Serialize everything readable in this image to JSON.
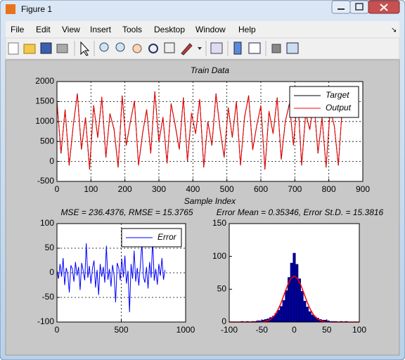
{
  "window": {
    "title": "Figure 1",
    "menu": [
      "File",
      "Edit",
      "View",
      "Insert",
      "Tools",
      "Desktop",
      "Window",
      "Help"
    ]
  },
  "chart_data": [
    {
      "type": "line",
      "title": "Train Data",
      "xlabel": "Sample Index",
      "x": [
        0,
        12,
        24,
        36,
        48,
        60,
        72,
        84,
        96,
        108,
        120,
        132,
        144,
        156,
        168,
        180,
        192,
        204,
        216,
        228,
        240,
        252,
        264,
        276,
        288,
        300,
        312,
        324,
        336,
        348,
        360,
        372,
        384,
        396,
        408,
        420,
        432,
        444,
        456,
        468,
        480,
        492,
        504,
        516,
        528,
        540,
        552,
        564,
        576,
        588,
        600,
        612,
        624,
        636,
        648,
        660,
        672,
        684,
        696,
        708,
        720,
        732,
        744,
        756,
        768,
        780,
        792,
        804,
        816,
        828,
        840
      ],
      "series": [
        {
          "name": "Target",
          "color": "#000000",
          "values": [
            1500,
            200,
            1300,
            -100,
            900,
            1700,
            300,
            1100,
            -200,
            1400,
            600,
            1600,
            100,
            1200,
            800,
            -150,
            1650,
            400,
            1000,
            1500,
            -100,
            700,
            1300,
            200,
            1750,
            500,
            1100,
            -50,
            1450,
            900,
            300,
            1600,
            0,
            1200,
            700,
            1550,
            -150,
            1000,
            400,
            1700,
            800,
            100,
            1350,
            600,
            1500,
            -100,
            1100,
            1650,
            300,
            900,
            1400,
            -200,
            1250,
            700,
            1600,
            50,
            1000,
            1450,
            400,
            1700,
            -100,
            1200,
            800,
            1550,
            200,
            1100,
            -150,
            1300,
            900,
            -100,
            1400
          ]
        },
        {
          "name": "Output",
          "color": "#ff0000",
          "values": [
            1480,
            220,
            1290,
            -80,
            915,
            1680,
            320,
            1085,
            -180,
            1410,
            590,
            1620,
            115,
            1190,
            820,
            -130,
            1630,
            410,
            985,
            1520,
            -85,
            715,
            1285,
            210,
            1730,
            490,
            1115,
            -40,
            1435,
            920,
            310,
            1580,
            15,
            1215,
            690,
            1565,
            -135,
            990,
            420,
            1680,
            815,
            110,
            1335,
            615,
            1490,
            -90,
            1120,
            1630,
            285,
            910,
            1390,
            -180,
            1265,
            690,
            1585,
            70,
            1010,
            1430,
            415,
            1690,
            -80,
            1215,
            790,
            1535,
            215,
            1090,
            -130,
            1315,
            885,
            -90,
            1410
          ]
        }
      ],
      "xlim": [
        0,
        900
      ],
      "xticks": [
        0,
        100,
        200,
        300,
        400,
        500,
        600,
        700,
        800,
        900
      ],
      "ylim": [
        -500,
        2000
      ],
      "yticks": [
        -500,
        0,
        500,
        1000,
        1500,
        2000
      ],
      "grid": true,
      "legend": "upper right"
    },
    {
      "type": "line",
      "title": "MSE = 236.4376, RMSE = 15.3765",
      "x": [
        0,
        12,
        24,
        36,
        48,
        60,
        72,
        84,
        96,
        108,
        120,
        132,
        144,
        156,
        168,
        180,
        192,
        204,
        216,
        228,
        240,
        252,
        264,
        276,
        288,
        300,
        312,
        324,
        336,
        348,
        360,
        372,
        384,
        396,
        408,
        420,
        432,
        444,
        456,
        468,
        480,
        492,
        504,
        516,
        528,
        540,
        552,
        564,
        576,
        588,
        600,
        612,
        624,
        636,
        648,
        660,
        672,
        684,
        696,
        708,
        720,
        732,
        744,
        756,
        768,
        780,
        792,
        804,
        816,
        828,
        840
      ],
      "series": [
        {
          "name": "Error",
          "color": "#0000ff",
          "values": [
            5,
            -12,
            18,
            -8,
            30,
            -25,
            10,
            -3,
            -40,
            15,
            8,
            -18,
            22,
            -6,
            12,
            -35,
            20,
            4,
            -15,
            60,
            -10,
            14,
            -22,
            9,
            25,
            -30,
            6,
            -45,
            18,
            -8,
            12,
            -20,
            55,
            -14,
            8,
            -28,
            16,
            -5,
            -60,
            20,
            10,
            -15,
            28,
            -9,
            35,
            -22,
            4,
            -80,
            18,
            -12,
            45,
            -18,
            10,
            -26,
            14,
            62,
            -8,
            -20,
            12,
            -32,
            22,
            -10,
            70,
            -16,
            8,
            -24,
            18,
            -6,
            30,
            -14,
            6
          ]
        }
      ],
      "xlim": [
        0,
        1000
      ],
      "xticks": [
        0,
        500,
        1000
      ],
      "ylim": [
        -100,
        100
      ],
      "yticks": [
        -100,
        -50,
        0,
        50,
        100
      ],
      "grid": true,
      "legend": "upper right"
    },
    {
      "type": "histogram",
      "title": "Error Mean = 0.35346, Error St.D. = 15.3816",
      "bins": [
        -82,
        -78,
        -74,
        -70,
        -66,
        -62,
        -58,
        -54,
        -50,
        -46,
        -42,
        -38,
        -34,
        -30,
        -26,
        -22,
        -18,
        -14,
        -10,
        -6,
        -2,
        2,
        6,
        10,
        14,
        18,
        22,
        26,
        30,
        34,
        38,
        42,
        46,
        50,
        54,
        58,
        62,
        66,
        70,
        74,
        78,
        82
      ],
      "counts": [
        1,
        0,
        1,
        0,
        1,
        1,
        2,
        2,
        3,
        4,
        5,
        7,
        9,
        13,
        18,
        24,
        33,
        48,
        68,
        90,
        105,
        88,
        66,
        47,
        32,
        23,
        16,
        11,
        8,
        6,
        4,
        3,
        3,
        2,
        1,
        1,
        1,
        0,
        1,
        0,
        1
      ],
      "color": "#000080",
      "fit": {
        "color": "#ff0000",
        "x": [
          -100,
          -95,
          -90,
          -85,
          -80,
          -75,
          -70,
          -65,
          -60,
          -55,
          -50,
          -45,
          -40,
          -35,
          -30,
          -25,
          -20,
          -15,
          -10,
          -5,
          0,
          5,
          10,
          15,
          20,
          25,
          30,
          35,
          40,
          45,
          50,
          55,
          60,
          65,
          70,
          75,
          80,
          85,
          90,
          95,
          100
        ],
        "values": [
          0,
          0,
          0,
          0,
          0,
          0,
          0,
          0,
          0,
          0.1,
          0.3,
          1.0,
          2.4,
          5.3,
          10.4,
          18.7,
          30.0,
          43.5,
          56.6,
          66.4,
          70,
          66.4,
          56.6,
          43.5,
          30.0,
          18.7,
          10.4,
          5.3,
          2.4,
          1.0,
          0.3,
          0.1,
          0,
          0,
          0,
          0,
          0,
          0,
          0,
          0,
          0
        ]
      },
      "xlim": [
        -100,
        100
      ],
      "xticks": [
        -100,
        -50,
        0,
        50,
        100
      ],
      "ylim": [
        0,
        150
      ],
      "yticks": [
        0,
        50,
        100,
        150
      ],
      "grid": false
    }
  ]
}
